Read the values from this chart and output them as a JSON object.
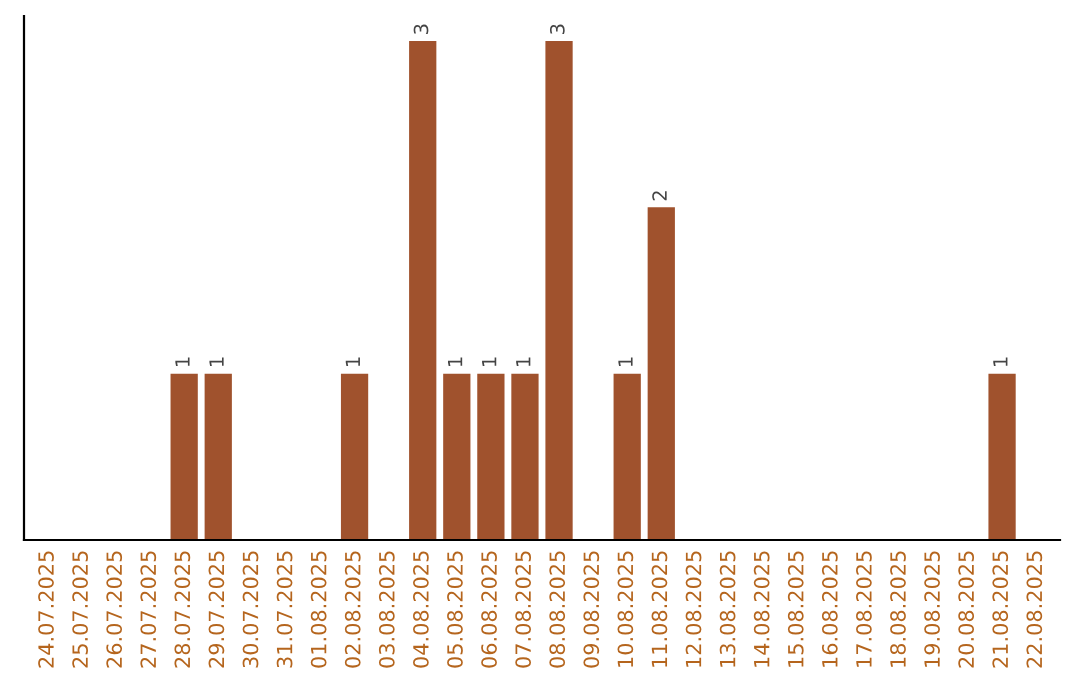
{
  "chart_data": {
    "type": "bar",
    "categories": [
      "24.07.2025",
      "25.07.2025",
      "26.07.2025",
      "27.07.2025",
      "28.07.2025",
      "29.07.2025",
      "30.07.2025",
      "31.07.2025",
      "01.08.2025",
      "02.08.2025",
      "03.08.2025",
      "04.08.2025",
      "05.08.2025",
      "06.08.2025",
      "07.08.2025",
      "08.08.2025",
      "09.08.2025",
      "10.08.2025",
      "11.08.2025",
      "12.08.2025",
      "13.08.2025",
      "14.08.2025",
      "15.08.2025",
      "16.08.2025",
      "17.08.2025",
      "18.08.2025",
      "19.08.2025",
      "20.08.2025",
      "21.08.2025",
      "22.08.2025"
    ],
    "values": [
      0,
      0,
      0,
      0,
      1,
      1,
      0,
      0,
      0,
      1,
      0,
      3,
      1,
      1,
      1,
      3,
      0,
      1,
      2,
      0,
      0,
      0,
      0,
      0,
      0,
      0,
      0,
      0,
      1,
      0
    ],
    "value_labels": [
      null,
      null,
      null,
      null,
      "1",
      "1",
      null,
      null,
      null,
      "1",
      null,
      "3",
      "1",
      "1",
      "1",
      "3",
      null,
      "1",
      "2",
      null,
      null,
      null,
      null,
      null,
      null,
      null,
      null,
      null,
      "1",
      null
    ],
    "color": "#a0522d",
    "grid": false,
    "legend": false
  }
}
